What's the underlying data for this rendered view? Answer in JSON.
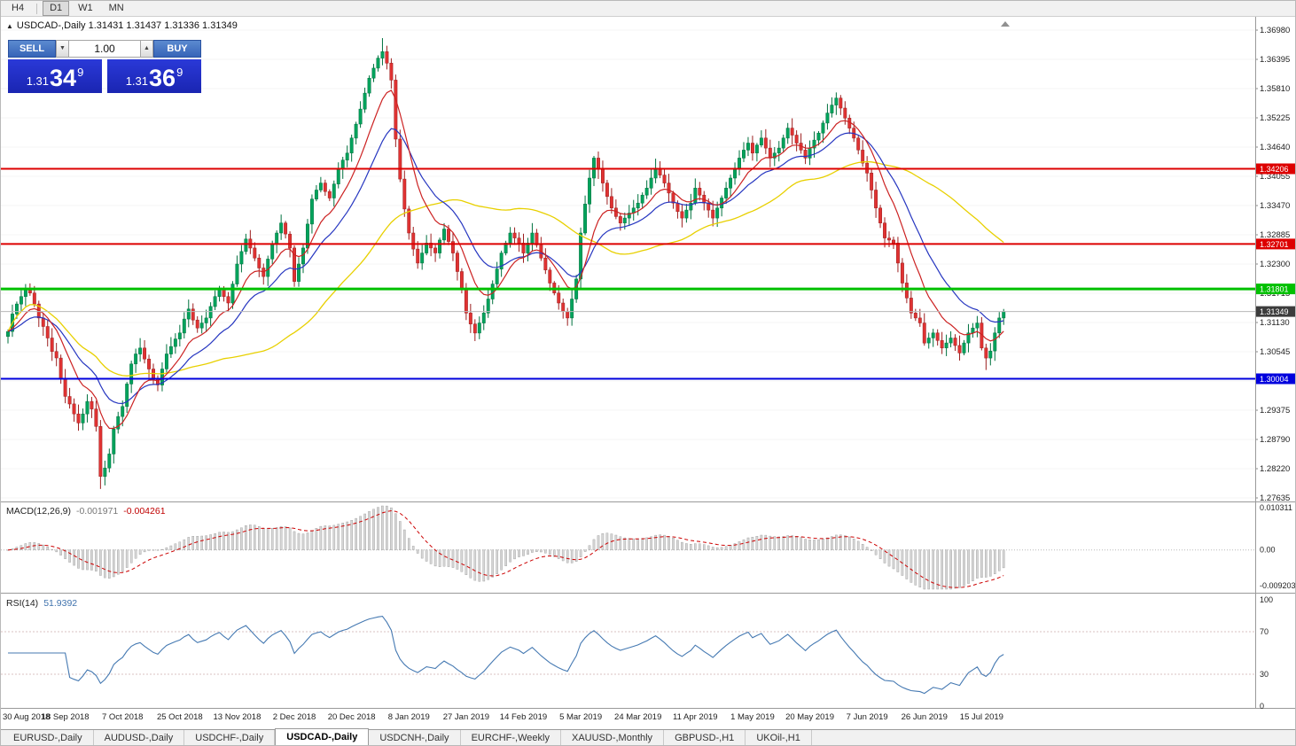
{
  "toolbar": {
    "timeframes": [
      "H4",
      "D1",
      "W1",
      "MN"
    ],
    "active": "D1"
  },
  "chart": {
    "title_text": "USDCAD-,Daily  1.31431 1.31437 1.31336 1.31349"
  },
  "trade_panel": {
    "sell_label": "SELL",
    "buy_label": "BUY",
    "volume": "1.00",
    "sell_price": {
      "prefix": "1.31",
      "big": "34",
      "sup": "9"
    },
    "buy_price": {
      "prefix": "1.31",
      "big": "36",
      "sup": "9"
    }
  },
  "macd_panel": {
    "name": "MACD(12,26,9)",
    "value_main": "-0.001971",
    "value_signal": "-0.004261",
    "axis_labels": [
      "0.010311",
      "0.00",
      "-0.009203"
    ],
    "axis_max": 0.010311,
    "axis_min": -0.009203
  },
  "rsi_panel": {
    "name": "RSI(14)",
    "value": "51.9392",
    "axis_labels": [
      "100",
      "70",
      "30",
      "0"
    ]
  },
  "tabs": {
    "labels": [
      "EURUSD-,Daily",
      "AUDUSD-,Daily",
      "USDCHF-,Daily",
      "USDCAD-,Daily",
      "USDCNH-,Daily",
      "EURCHF-,Weekly",
      "XAUUSD-,Monthly",
      "GBPUSD-,H1",
      "UKOil-,H1"
    ],
    "active_index": 3
  },
  "colors": {
    "up": "#00a35c",
    "up_border": "#00713e",
    "down": "#e03232",
    "down_border": "#9c1f1f",
    "ma_fast": "#cc2222",
    "ma_mid": "#2636c0",
    "ma_slow": "#e8d000",
    "macd_hist_fill": "#d6d6d6",
    "macd_hist_border": "#9a9a9a",
    "macd_signal": "#cc0000",
    "rsi_line": "#4579b2",
    "last_price_tag": "#3c3c3c",
    "grid": "#f5f5f5"
  },
  "chart_data": {
    "type": "candlestick",
    "symbol": "USDCAD-",
    "timeframe": "Daily",
    "current_bar": {
      "open": 1.31431,
      "high": 1.31437,
      "low": 1.31336,
      "close": 1.31349
    },
    "last_price": 1.31349,
    "ylim": [
      1.27635,
      1.3698
    ],
    "price_axis_ticks": [
      "1.36980",
      "1.36395",
      "1.35810",
      "1.35225",
      "1.34640",
      "1.34055",
      "1.33470",
      "1.32885",
      "1.32300",
      "1.31715",
      "1.31130",
      "1.30545",
      "1.29960",
      "1.29375",
      "1.28790",
      "1.28220",
      "1.27635"
    ],
    "x_labels": [
      "30 Aug 2018",
      "18 Sep 2018",
      "7 Oct 2018",
      "25 Oct 2018",
      "13 Nov 2018",
      "2 Dec 2018",
      "20 Dec 2018",
      "8 Jan 2019",
      "27 Jan 2019",
      "14 Feb 2019",
      "5 Mar 2019",
      "24 Mar 2019",
      "11 Apr 2019",
      "1 May 2019",
      "20 May 2019",
      "7 Jun 2019",
      "26 Jun 2019",
      "15 Jul 2019"
    ],
    "bars_per_label": 13,
    "levels": [
      {
        "price": 1.34206,
        "label": "1.34206",
        "color": "#dd0000",
        "width": 2
      },
      {
        "price": 1.32701,
        "label": "1.32701",
        "color": "#dd0000",
        "width": 2
      },
      {
        "price": 1.31801,
        "label": "1.31801",
        "color": "#00c000",
        "width": 3
      },
      {
        "price": 1.30004,
        "label": "1.30004",
        "color": "#0000dd",
        "width": 2
      }
    ],
    "wick_extremes": {
      "21": 1.278,
      "85": 1.3682,
      "222": 1.3018
    },
    "moving_averages": [
      {
        "period": 50,
        "color_key": "ma_slow"
      },
      {
        "period": 20,
        "color_key": "ma_mid"
      },
      {
        "period": 10,
        "color_key": "ma_fast"
      }
    ],
    "closes": [
      1.3095,
      1.313,
      1.315,
      1.3165,
      1.318,
      1.3172,
      1.315,
      1.3122,
      1.3105,
      1.3082,
      1.3055,
      1.3042,
      1.3,
      1.2965,
      1.295,
      1.293,
      1.2912,
      1.293,
      1.2955,
      1.294,
      1.2905,
      1.2805,
      1.2822,
      1.285,
      1.29,
      1.2925,
      1.2945,
      1.299,
      1.303,
      1.305,
      1.3062,
      1.304,
      1.302,
      1.3,
      1.2988,
      1.302,
      1.305,
      1.3065,
      1.308,
      1.3092,
      1.312,
      1.314,
      1.3118,
      1.3102,
      1.3112,
      1.3122,
      1.3145,
      1.3165,
      1.318,
      1.3165,
      1.3152,
      1.319,
      1.323,
      1.3255,
      1.328,
      1.3262,
      1.3242,
      1.3222,
      1.3205,
      1.324,
      1.327,
      1.3292,
      1.3312,
      1.329,
      1.3262,
      1.3195,
      1.323,
      1.3262,
      1.331,
      1.336,
      1.3378,
      1.3392,
      1.3375,
      1.3362,
      1.339,
      1.342,
      1.3438,
      1.3452,
      1.3482,
      1.351,
      1.354,
      1.3572,
      1.3602,
      1.3622,
      1.3642,
      1.3655,
      1.3632,
      1.3598,
      1.348,
      1.34,
      1.334,
      1.3292,
      1.326,
      1.3232,
      1.3252,
      1.3272,
      1.3262,
      1.3252,
      1.3278,
      1.33,
      1.3275,
      1.3252,
      1.3215,
      1.318,
      1.3132,
      1.311,
      1.3092,
      1.3112,
      1.3132,
      1.316,
      1.319,
      1.322,
      1.3252,
      1.3272,
      1.3292,
      1.3282,
      1.3272,
      1.3252,
      1.3272,
      1.3292,
      1.3268,
      1.3242,
      1.3218,
      1.3192,
      1.3172,
      1.3152,
      1.3135,
      1.3122,
      1.316,
      1.32,
      1.3292,
      1.335,
      1.3402,
      1.3442,
      1.342,
      1.3392,
      1.3365,
      1.3342,
      1.3325,
      1.3312,
      1.3322,
      1.3332,
      1.3342,
      1.3352,
      1.3368,
      1.3382,
      1.3402,
      1.3422,
      1.3408,
      1.3392,
      1.3372,
      1.3352,
      1.3335,
      1.3322,
      1.3338,
      1.3352,
      1.3382,
      1.3368,
      1.3352,
      1.3338,
      1.3322,
      1.3342,
      1.3362,
      1.3382,
      1.3402,
      1.3422,
      1.3442,
      1.3458,
      1.3472,
      1.3452,
      1.3468,
      1.3482,
      1.3462,
      1.3442,
      1.3452,
      1.3462,
      1.3482,
      1.3502,
      1.3488,
      1.3472,
      1.3458,
      1.3442,
      1.3462,
      1.3478,
      1.3492,
      1.3512,
      1.3532,
      1.3548,
      1.3562,
      1.3542,
      1.3522,
      1.3502,
      1.3482,
      1.3458,
      1.3432,
      1.3412,
      1.3378,
      1.3342,
      1.3312,
      1.3282,
      1.3278,
      1.3272,
      1.3232,
      1.3192,
      1.3162,
      1.3132,
      1.3122,
      1.3112,
      1.3072,
      1.3082,
      1.3092,
      1.3077,
      1.3062,
      1.3072,
      1.3082,
      1.3067,
      1.3052,
      1.3072,
      1.3092,
      1.3102,
      1.3112,
      1.3062,
      1.3042,
      1.3056,
      1.3092,
      1.3122,
      1.31349
    ]
  }
}
